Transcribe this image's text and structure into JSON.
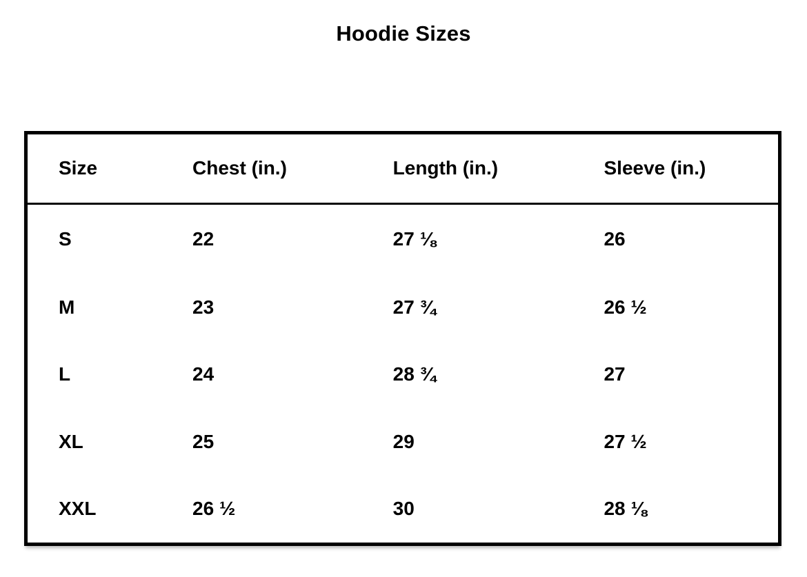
{
  "title": "Hoodie Sizes",
  "chart_data": {
    "type": "table",
    "title": "Hoodie Sizes",
    "columns": [
      "Size",
      "Chest (in.)",
      "Length (in.)",
      "Sleeve (in.)"
    ],
    "rows": [
      [
        "S",
        "22",
        "27 ⅛",
        "26"
      ],
      [
        "M",
        "23",
        "27 ¾",
        "26 ½"
      ],
      [
        "L",
        "24",
        "28 ¾",
        "27"
      ],
      [
        "XL",
        "25",
        "29",
        "27 ½"
      ],
      [
        "XXL",
        "26 ½",
        "30",
        "28 ⅛"
      ]
    ],
    "numeric": {
      "sizes": [
        "S",
        "M",
        "L",
        "XL",
        "XXL"
      ],
      "chest_in": [
        22,
        23,
        24,
        25,
        26.5
      ],
      "length_in": [
        27.125,
        27.75,
        28.75,
        29,
        30
      ],
      "sleeve_in": [
        26,
        26.5,
        27,
        27.5,
        28.125
      ]
    },
    "layout_hints": {
      "grid": "outer border and header underline only",
      "header_position": "top row"
    }
  },
  "colors": {
    "text": "#000000",
    "border": "#000000",
    "background": "#ffffff"
  }
}
